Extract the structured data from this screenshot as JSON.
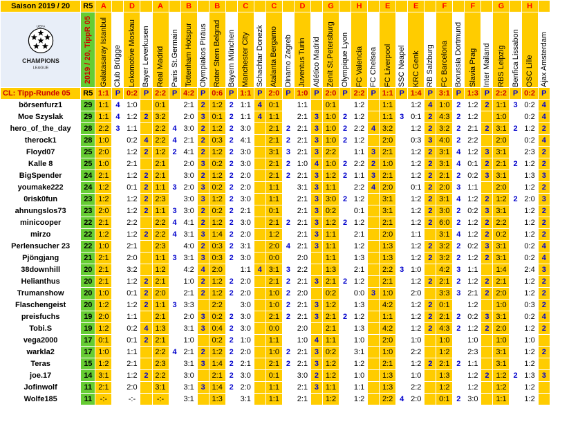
{
  "header": {
    "season": "Saison 2019 / 20",
    "round": "R5",
    "vertical_label": "2019 / 20, TippR 05",
    "row_label": "CL: Tipp-Runde 05",
    "points_label": "P"
  },
  "logo": {
    "line1": "CHAMPIONS",
    "line2": "LEAGUE",
    "uefa": "UEFA"
  },
  "groups": [
    "A",
    "",
    "D",
    "",
    "A",
    "",
    "B",
    "",
    "B",
    "",
    "C",
    "",
    "C",
    "",
    "D",
    "",
    "G",
    "",
    "H",
    "",
    "E",
    "",
    "E",
    "",
    "F",
    "",
    "F",
    "",
    "G",
    "",
    "H",
    ""
  ],
  "teams": [
    "Galatasaray Istanbul",
    "Club Brügge",
    "Lokomotive Moskau",
    "Bayer Leverkusen",
    "Real Madrid",
    "Paris St.Germain",
    "Tottenham Hotspur",
    "Olympiakos Piräus",
    "Roter Stern Belgrad",
    "Bayern München",
    "Manchester City",
    "Schachtar Donezk",
    "Atalanta Bergamo",
    "Dinamo Zagreb",
    "Juventus Turin",
    "Atlético Madrid",
    "Zenit St.Petersburg",
    "Olympique Lyon",
    "FC Valencia",
    "FC Chelsea",
    "FC Liverpool",
    "SSC Neapel",
    "KRC Genk",
    "RB Salzburg",
    "FC Barcelona",
    "Borussia Dortmund",
    "Slavia Prag",
    "Inter Mailand",
    "RBS Leipzig",
    "Benfica Lissabon",
    "OSC Lille",
    "Ajax Amsterdam"
  ],
  "results": [
    "1:1",
    "0:2",
    "2:2",
    "4:2",
    "0:6",
    "1:1",
    "2:0",
    "1:0",
    "2:0",
    "2:2",
    "1:1",
    "1:4",
    "3:1",
    "1:3",
    "2:2",
    "0:2"
  ],
  "rows": [
    {
      "name": "börsenfurz1",
      "pts": "29",
      "t": [
        "1:1",
        "1:0",
        "0:1",
        "2:1",
        "1:2",
        "1:1",
        "0:1",
        "1:1",
        "0:1",
        "1:2",
        "1:1",
        "1:2",
        "1:0",
        "1:2",
        "1:1",
        "0:2"
      ],
      "p": [
        "4",
        "",
        "",
        "2",
        "2",
        "4",
        "",
        "",
        "",
        "",
        "",
        "4",
        "2",
        "2",
        "3",
        "4"
      ]
    },
    {
      "name": "Moe Szyslak",
      "pts": "29",
      "t": [
        "1:1",
        "1:2",
        "3:2",
        "2:0",
        "0:1",
        "1:1",
        "1:1",
        "2:1",
        "1:0",
        "1:2",
        "1:1",
        "0:1",
        "4:3",
        "1:2",
        "1:0",
        "0:2"
      ],
      "p": [
        "4",
        "2",
        "",
        "3",
        "2",
        "4",
        "",
        "3",
        "2",
        "",
        "3",
        "2",
        "2",
        "",
        "",
        "4"
      ]
    },
    {
      "name": "hero_of_the_day",
      "pts": "28",
      "t": [
        "2:2",
        "1:1",
        "2:2",
        "3:0",
        "1:2",
        "3:0",
        "2:1",
        "2:1",
        "1:0",
        "2:2",
        "3:2",
        "1:2",
        "3:2",
        "2:1",
        "3:1",
        "1:2"
      ],
      "p": [
        "3",
        "",
        "4",
        "2",
        "2",
        "",
        "2",
        "3",
        "2",
        "4",
        "",
        "2",
        "2",
        "2",
        "2",
        "2"
      ]
    },
    {
      "name": "therock1",
      "pts": "28",
      "t": [
        "1:0",
        "0:2",
        "2:2",
        "2:1",
        "0:3",
        "4:1",
        "2:1",
        "2:1",
        "1:0",
        "1:2",
        "2:0",
        "0:3",
        "4:0",
        "2:2",
        "2:0",
        "0:2"
      ],
      "p": [
        "",
        "4",
        "4",
        "2",
        "2",
        "",
        "2",
        "3",
        "2",
        "",
        "",
        "3",
        "2",
        "",
        "",
        "4"
      ]
    },
    {
      "name": "Floyd07",
      "pts": "25",
      "t": [
        "2:0",
        "1:2",
        "1:2",
        "4:1",
        "1:2",
        "3:0",
        "3:1",
        "2:1",
        "2:2",
        "1:1",
        "2:1",
        "1:2",
        "3:1",
        "1:2",
        "3:1",
        "2:3"
      ],
      "p": [
        "",
        "2",
        "2",
        "2",
        "2",
        "",
        "3",
        "3",
        "",
        "3",
        "",
        "2",
        "4",
        "3",
        "",
        "2"
      ]
    },
    {
      "name": "Kalle 8",
      "pts": "25",
      "t": [
        "1:0",
        "2:1",
        "2:1",
        "2:0",
        "0:2",
        "3:0",
        "2:1",
        "1:0",
        "1:0",
        "2:2",
        "1:0",
        "1:2",
        "3:1",
        "0:1",
        "2:1",
        "1:2"
      ],
      "p": [
        "",
        "",
        "",
        "3",
        "2",
        "",
        "2",
        "4",
        "2",
        "2",
        "",
        "2",
        "4",
        "2",
        "2",
        "2"
      ]
    },
    {
      "name": "BigSpender",
      "pts": "24",
      "t": [
        "2:1",
        "1:2",
        "2:1",
        "3:0",
        "1:2",
        "2:0",
        "2:1",
        "2:1",
        "1:2",
        "1:1",
        "2:1",
        "1:2",
        "2:1",
        "0:2",
        "3:1",
        "1:3"
      ],
      "p": [
        "",
        "2",
        "",
        "2",
        "2",
        "",
        "2",
        "3",
        "2",
        "3",
        "",
        "2",
        "2",
        "3",
        "",
        "3"
      ]
    },
    {
      "name": "youmake222",
      "pts": "24",
      "t": [
        "1:2",
        "0:1",
        "1:1",
        "2:0",
        "0:2",
        "2:0",
        "1:1",
        "3:1",
        "1:1",
        "2:2",
        "2:0",
        "0:1",
        "2:0",
        "1:1",
        "2:0",
        "1:2"
      ],
      "p": [
        "",
        "2",
        "3",
        "3",
        "2",
        "",
        "",
        "3",
        "",
        "4",
        "",
        "2",
        "3",
        "",
        "",
        "2"
      ]
    },
    {
      "name": "0risk0fun",
      "pts": "23",
      "t": [
        "1:2",
        "1:2",
        "2:3",
        "3:0",
        "1:2",
        "3:0",
        "1:1",
        "2:1",
        "3:0",
        "1:2",
        "3:1",
        "1:2",
        "3:1",
        "1:2",
        "1:2",
        "2:0"
      ],
      "p": [
        "",
        "2",
        "",
        "3",
        "2",
        "",
        "",
        "3",
        "2",
        "",
        "",
        "2",
        "4",
        "2",
        "2",
        "3"
      ]
    },
    {
      "name": "ahnungslos73",
      "pts": "23",
      "t": [
        "2:0",
        "1:2",
        "1:1",
        "3:0",
        "0:2",
        "2:1",
        "0:1",
        "2:1",
        "0:2",
        "0:1",
        "3:1",
        "1:2",
        "3:0",
        "0:2",
        "3:1",
        "1:2"
      ],
      "p": [
        "",
        "2",
        "3",
        "2",
        "2",
        "",
        "",
        "3",
        "",
        "",
        "",
        "2",
        "2",
        "3",
        "",
        "2"
      ]
    },
    {
      "name": "minicooper",
      "pts": "22",
      "t": [
        "2:1",
        "2:2",
        "2:2",
        "4:1",
        "1:2",
        "3:0",
        "2:1",
        "2:1",
        "1:2",
        "1:2",
        "2:1",
        "1:2",
        "6:0",
        "1:2",
        "2:2",
        "1:2"
      ],
      "p": [
        "",
        "",
        "4",
        "2",
        "2",
        "",
        "2",
        "3",
        "2",
        "",
        "",
        "2",
        "2",
        "2",
        "",
        "2"
      ]
    },
    {
      "name": "mirzo",
      "pts": "22",
      "t": [
        "1:2",
        "1:2",
        "2:2",
        "3:1",
        "1:4",
        "2:0",
        "1:2",
        "2:1",
        "1:1",
        "2:1",
        "2:0",
        "1:1",
        "3:1",
        "1:2",
        "0:2",
        "1:2"
      ],
      "p": [
        "",
        "2",
        "4",
        "3",
        "2",
        "",
        "",
        "3",
        "",
        "",
        "",
        "",
        "4",
        "2",
        "",
        "2"
      ]
    },
    {
      "name": "Perlensucher 23",
      "pts": "22",
      "t": [
        "1:0",
        "2:1",
        "2:3",
        "4:0",
        "0:3",
        "3:1",
        "2:0",
        "2:1",
        "1:1",
        "1:2",
        "1:3",
        "1:2",
        "3:2",
        "0:2",
        "3:1",
        "0:2"
      ],
      "p": [
        "",
        "",
        "",
        "2",
        "2",
        "",
        "4",
        "3",
        "",
        "",
        "",
        "2",
        "2",
        "3",
        "",
        "4"
      ]
    },
    {
      "name": "Pjöngjang",
      "pts": "21",
      "t": [
        "2:1",
        "2:0",
        "1:1",
        "3:1",
        "0:3",
        "3:0",
        "0:0",
        "2:0",
        "1:1",
        "1:3",
        "1:3",
        "1:2",
        "3:2",
        "1:2",
        "3:1",
        "0:2"
      ],
      "p": [
        "",
        "",
        "3",
        "3",
        "2",
        "",
        "",
        "",
        "",
        "",
        "",
        "2",
        "2",
        "2",
        "",
        "4"
      ]
    },
    {
      "name": "38downhill",
      "pts": "20",
      "t": [
        "2:1",
        "3:2",
        "1:2",
        "4:2",
        "2:0",
        "1:1",
        "3:1",
        "2:2",
        "1:3",
        "2:1",
        "2:2",
        "1:0",
        "4:2",
        "1:1",
        "1:4",
        "2:4"
      ],
      "p": [
        "",
        "",
        "",
        "4",
        "",
        "4",
        "3",
        "",
        "",
        "",
        "3",
        "",
        "3",
        "",
        "",
        "3"
      ]
    },
    {
      "name": "Helianthus",
      "pts": "20",
      "t": [
        "2:1",
        "1:2",
        "2:1",
        "1:0",
        "1:2",
        "2:0",
        "2:1",
        "2:1",
        "2:1",
        "1:2",
        "2:1",
        "1:2",
        "2:1",
        "1:2",
        "2:1",
        "1:2"
      ],
      "p": [
        "",
        "2",
        "",
        "2",
        "2",
        "",
        "2",
        "3",
        "2",
        "",
        "",
        "2",
        "2",
        "2",
        "",
        "2"
      ]
    },
    {
      "name": "Trumanshow",
      "pts": "20",
      "t": [
        "1:0",
        "0:1",
        "2:0",
        "2:1",
        "1:2",
        "2:0",
        "1:0",
        "2:0",
        "0:2",
        "0:0",
        "1:0",
        "2:0",
        "3:3",
        "2:1",
        "2:0",
        "1:2"
      ],
      "p": [
        "",
        "2",
        "",
        "2",
        "2",
        "",
        "2",
        "",
        "",
        "3",
        "",
        "",
        "3",
        "2",
        "",
        "2"
      ]
    },
    {
      "name": "Flaschengeist",
      "pts": "20",
      "t": [
        "1:2",
        "1:2",
        "1:1",
        "3:3",
        "2:2",
        "3:0",
        "1:0",
        "2:1",
        "1:2",
        "1:3",
        "4:2",
        "1:2",
        "0:1",
        "1:2",
        "1:0",
        "0:3"
      ],
      "p": [
        "",
        "2",
        "3",
        "",
        "",
        "",
        "2",
        "3",
        "",
        "",
        "",
        "2",
        "",
        "",
        "",
        "2"
      ]
    },
    {
      "name": "preisfuchs",
      "pts": "19",
      "t": [
        "2:0",
        "1:1",
        "2:1",
        "2:0",
        "0:2",
        "3:0",
        "2:1",
        "2:1",
        "2:1",
        "1:2",
        "1:1",
        "1:2",
        "2:1",
        "0:2",
        "3:1",
        "0:2"
      ],
      "p": [
        "",
        "",
        "",
        "3",
        "2",
        "",
        "2",
        "3",
        "2",
        "",
        "",
        "2",
        "2",
        "3",
        "",
        "4"
      ]
    },
    {
      "name": "Tobi.S",
      "pts": "19",
      "t": [
        "1:2",
        "0:2",
        "1:3",
        "3:1",
        "0:4",
        "3:0",
        "0:0",
        "2:0",
        "2:1",
        "1:3",
        "4:2",
        "1:2",
        "4:3",
        "1:2",
        "2:0",
        "1:2"
      ],
      "p": [
        "",
        "4",
        "",
        "3",
        "2",
        "",
        "",
        "",
        "",
        "",
        "",
        "2",
        "2",
        "2",
        "",
        "2"
      ]
    },
    {
      "name": "vega2000",
      "pts": "17",
      "t": [
        "0:1",
        "0:1",
        "2:1",
        "1:0",
        "0:2",
        "1:0",
        "1:1",
        "1:0",
        "1:1",
        "1:0",
        "2:0",
        "1:0",
        "1:0",
        "1:0",
        "1:0",
        "1:0"
      ],
      "p": [
        "",
        "2",
        "",
        "",
        "2",
        "",
        "",
        "4",
        "",
        "",
        "",
        "",
        "",
        "",
        "",
        ""
      ]
    },
    {
      "name": "warkla2",
      "pts": "17",
      "t": [
        "1:0",
        "1:1",
        "2:2",
        "2:1",
        "1:2",
        "2:0",
        "1:0",
        "2:1",
        "0:2",
        "3:1",
        "1:0",
        "2:2",
        "1:2",
        "2:3",
        "3:1",
        "1:2"
      ],
      "p": [
        "",
        "",
        "4",
        "2",
        "2",
        "",
        "2",
        "3",
        "",
        "",
        "",
        "",
        "",
        "",
        "",
        "2"
      ]
    },
    {
      "name": "Teras",
      "pts": "15",
      "t": [
        "1:2",
        "2:1",
        "2:3",
        "3:1",
        "1:4",
        "2:1",
        "2:1",
        "2:1",
        "1:2",
        "1:2",
        "2:1",
        "1:2",
        "2:1",
        "1:1",
        "3:1",
        "1:2"
      ],
      "p": [
        "",
        "",
        "",
        "3",
        "2",
        "",
        "2",
        "3",
        "",
        "",
        "",
        "2",
        "2",
        "",
        "",
        ""
      ]
    },
    {
      "name": "joe.17",
      "pts": "14",
      "t": [
        "3:1",
        "1:2",
        "2:2",
        "3:0",
        "2:1",
        "3:0",
        "0:1",
        "3:0",
        "1:2",
        "1:0",
        "1:3",
        "1:0",
        "1:3",
        "1:2",
        "1:2",
        "1:3"
      ],
      "p": [
        "",
        "2",
        "",
        "",
        "2",
        "",
        "",
        "2",
        "",
        "",
        "",
        "",
        "",
        "2",
        "2",
        "3"
      ]
    },
    {
      "name": "Jofinwolf",
      "pts": "11",
      "t": [
        "2:1",
        "2:0",
        "3:1",
        "3:1",
        "1:4",
        "2:0",
        "1:1",
        "2:1",
        "1:1",
        "1:1",
        "1:3",
        "2:2",
        "1:2",
        "1:2",
        "1:2",
        "1:2"
      ],
      "p": [
        "",
        "",
        "",
        "3",
        "2",
        "",
        "",
        "3",
        "",
        "",
        "",
        "",
        "",
        "",
        "",
        ""
      ]
    },
    {
      "name": "Wolfe185",
      "pts": "11",
      "t": [
        "-:-",
        "-:-",
        "-:-",
        "3:1",
        "1:3",
        "3:1",
        "1:1",
        "2:1",
        "1:2",
        "1:2",
        "2:2",
        "2:0",
        "0:1",
        "3:0",
        "1:1",
        "1:2"
      ],
      "p": [
        "",
        "",
        "",
        "",
        "",
        "",
        "",
        "",
        "",
        "",
        "4",
        "",
        "2",
        "",
        "",
        ""
      ]
    }
  ]
}
